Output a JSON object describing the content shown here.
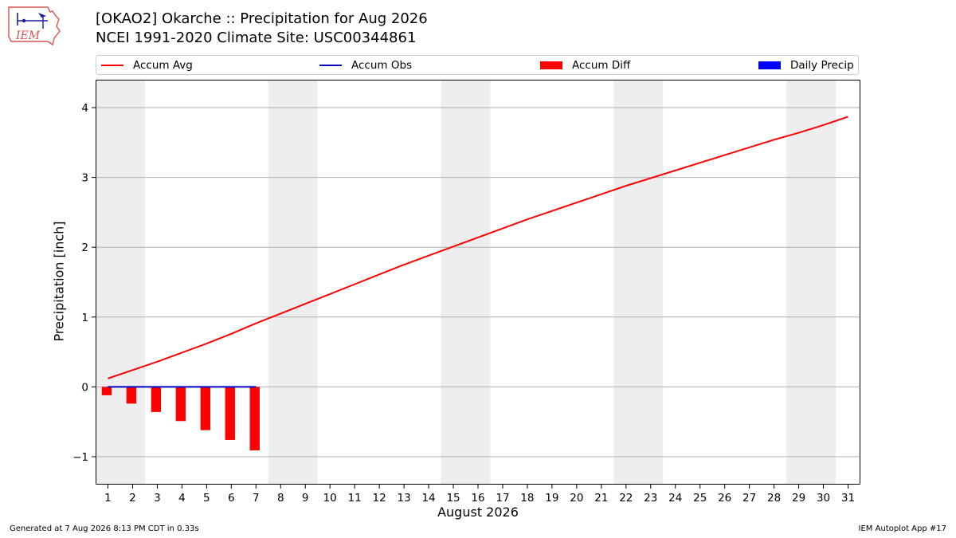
{
  "header": {
    "title_line1": "[OKAO2] Okarche :: Precipitation for Aug 2026",
    "title_line2": "NCEI 1991-2020 Climate Site: USC00344861",
    "logo_text": "IEM"
  },
  "legend": {
    "items": [
      {
        "label": "Accum Avg",
        "kind": "line",
        "color": "#ff0000"
      },
      {
        "label": "Accum Obs",
        "kind": "line",
        "color": "#0000cc"
      },
      {
        "label": "Accum Diff",
        "kind": "box",
        "color": "#ff0000"
      },
      {
        "label": "Daily Precip",
        "kind": "box",
        "color": "#0000ff"
      }
    ]
  },
  "footer": {
    "generated": "Generated at 7 Aug 2026 8:13 PM CDT in 0.33s",
    "app": "IEM Autoplot App #17"
  },
  "chart_data": {
    "type": "line",
    "title": "[OKAO2] Okarche :: Precipitation for Aug 2026",
    "xlabel": "August 2026",
    "ylabel": "Precipitation [inch]",
    "x": [
      1,
      2,
      3,
      4,
      5,
      6,
      7,
      8,
      9,
      10,
      11,
      12,
      13,
      14,
      15,
      16,
      17,
      18,
      19,
      20,
      21,
      22,
      23,
      24,
      25,
      26,
      27,
      28,
      29,
      30,
      31
    ],
    "xlim": [
      0.5,
      31.5
    ],
    "ylim": [
      -1.4,
      4.4
    ],
    "yticks": [
      -1,
      0,
      1,
      2,
      3,
      4
    ],
    "ytick_labels": [
      "−1",
      "0",
      "1",
      "2",
      "3",
      "4"
    ],
    "grid": "horizontal",
    "legend_position": "top",
    "weekend_shading": [
      [
        1,
        2
      ],
      [
        8,
        9
      ],
      [
        15,
        16
      ],
      [
        22,
        23
      ],
      [
        29,
        30
      ]
    ],
    "series": [
      {
        "name": "Accum Avg",
        "type": "line",
        "color": "#ff0000",
        "x": [
          1,
          2,
          3,
          4,
          5,
          6,
          7,
          8,
          9,
          10,
          11,
          12,
          13,
          14,
          15,
          16,
          17,
          18,
          19,
          20,
          21,
          22,
          23,
          24,
          25,
          26,
          27,
          28,
          29,
          30,
          31
        ],
        "values": [
          0.12,
          0.24,
          0.36,
          0.49,
          0.62,
          0.76,
          0.91,
          1.05,
          1.19,
          1.33,
          1.47,
          1.61,
          1.75,
          1.88,
          2.01,
          2.14,
          2.27,
          2.4,
          2.52,
          2.64,
          2.76,
          2.88,
          2.99,
          3.1,
          3.21,
          3.32,
          3.43,
          3.54,
          3.64,
          3.75,
          3.87
        ]
      },
      {
        "name": "Accum Obs",
        "type": "line",
        "color": "#0000cc",
        "x": [
          1,
          2,
          3,
          4,
          5,
          6,
          7
        ],
        "values": [
          0,
          0,
          0,
          0,
          0,
          0,
          0
        ]
      },
      {
        "name": "Accum Diff",
        "type": "bar",
        "color": "#ff0000",
        "x": [
          1,
          2,
          3,
          4,
          5,
          6,
          7
        ],
        "values": [
          -0.12,
          -0.24,
          -0.36,
          -0.49,
          -0.62,
          -0.76,
          -0.91
        ]
      },
      {
        "name": "Daily Precip",
        "type": "bar",
        "color": "#0000ff",
        "x": [],
        "values": []
      }
    ]
  }
}
